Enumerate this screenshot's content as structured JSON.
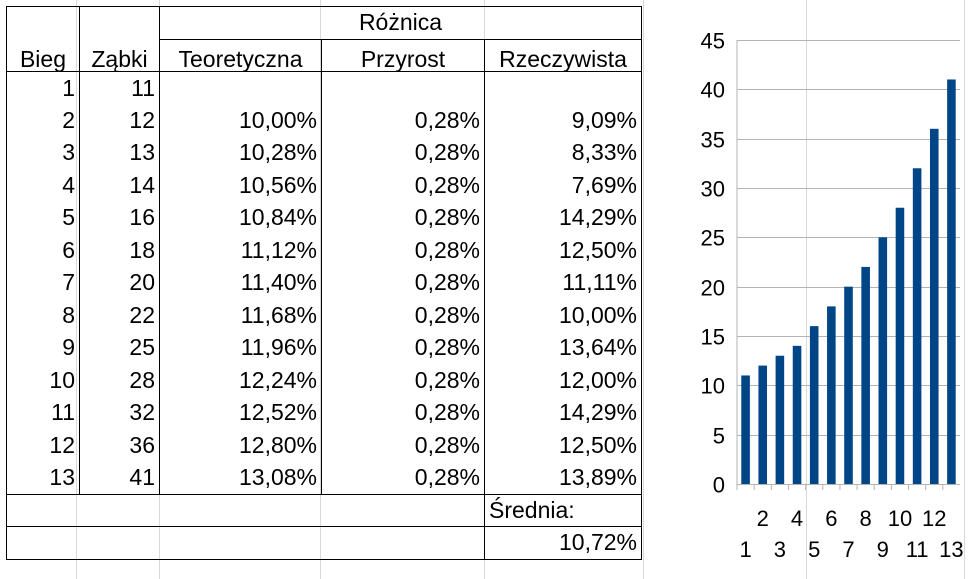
{
  "table": {
    "group_header": "Różnica",
    "headers": {
      "bieg": "Bieg",
      "zabki": "Ząbki",
      "teoretyczna": "Teoretyczna",
      "przyrost": "Przyrost",
      "rzeczywista": "Rzeczywista"
    },
    "rows": [
      {
        "bieg": "1",
        "zabki": "11",
        "teoretyczna": "",
        "przyrost": "",
        "rzeczywista": ""
      },
      {
        "bieg": "2",
        "zabki": "12",
        "teoretyczna": "10,00%",
        "przyrost": "0,28%",
        "rzeczywista": "9,09%"
      },
      {
        "bieg": "3",
        "zabki": "13",
        "teoretyczna": "10,28%",
        "przyrost": "0,28%",
        "rzeczywista": "8,33%"
      },
      {
        "bieg": "4",
        "zabki": "14",
        "teoretyczna": "10,56%",
        "przyrost": "0,28%",
        "rzeczywista": "7,69%"
      },
      {
        "bieg": "5",
        "zabki": "16",
        "teoretyczna": "10,84%",
        "przyrost": "0,28%",
        "rzeczywista": "14,29%"
      },
      {
        "bieg": "6",
        "zabki": "18",
        "teoretyczna": "11,12%",
        "przyrost": "0,28%",
        "rzeczywista": "12,50%"
      },
      {
        "bieg": "7",
        "zabki": "20",
        "teoretyczna": "11,40%",
        "przyrost": "0,28%",
        "rzeczywista": "11,11%"
      },
      {
        "bieg": "8",
        "zabki": "22",
        "teoretyczna": "11,68%",
        "przyrost": "0,28%",
        "rzeczywista": "10,00%"
      },
      {
        "bieg": "9",
        "zabki": "25",
        "teoretyczna": "11,96%",
        "przyrost": "0,28%",
        "rzeczywista": "13,64%"
      },
      {
        "bieg": "10",
        "zabki": "28",
        "teoretyczna": "12,24%",
        "przyrost": "0,28%",
        "rzeczywista": "12,00%"
      },
      {
        "bieg": "11",
        "zabki": "32",
        "teoretyczna": "12,52%",
        "przyrost": "0,28%",
        "rzeczywista": "14,29%"
      },
      {
        "bieg": "12",
        "zabki": "36",
        "teoretyczna": "12,80%",
        "przyrost": "0,28%",
        "rzeczywista": "12,50%"
      },
      {
        "bieg": "13",
        "zabki": "41",
        "teoretyczna": "13,08%",
        "przyrost": "0,28%",
        "rzeczywista": "13,89%"
      }
    ],
    "average_label": "Średnia:",
    "average_value": "10,72%"
  },
  "chart_data": {
    "type": "bar",
    "categories": [
      "1",
      "2",
      "3",
      "4",
      "5",
      "6",
      "7",
      "8",
      "9",
      "10",
      "11",
      "12",
      "13"
    ],
    "values": [
      11,
      12,
      13,
      14,
      16,
      18,
      20,
      22,
      25,
      28,
      32,
      36,
      41
    ],
    "ylim": [
      0,
      45
    ],
    "yticks": [
      0,
      5,
      10,
      15,
      20,
      25,
      30,
      35,
      40,
      45
    ],
    "grid": true,
    "bar_color": "#004586",
    "title": "",
    "xlabel": "",
    "ylabel": ""
  }
}
